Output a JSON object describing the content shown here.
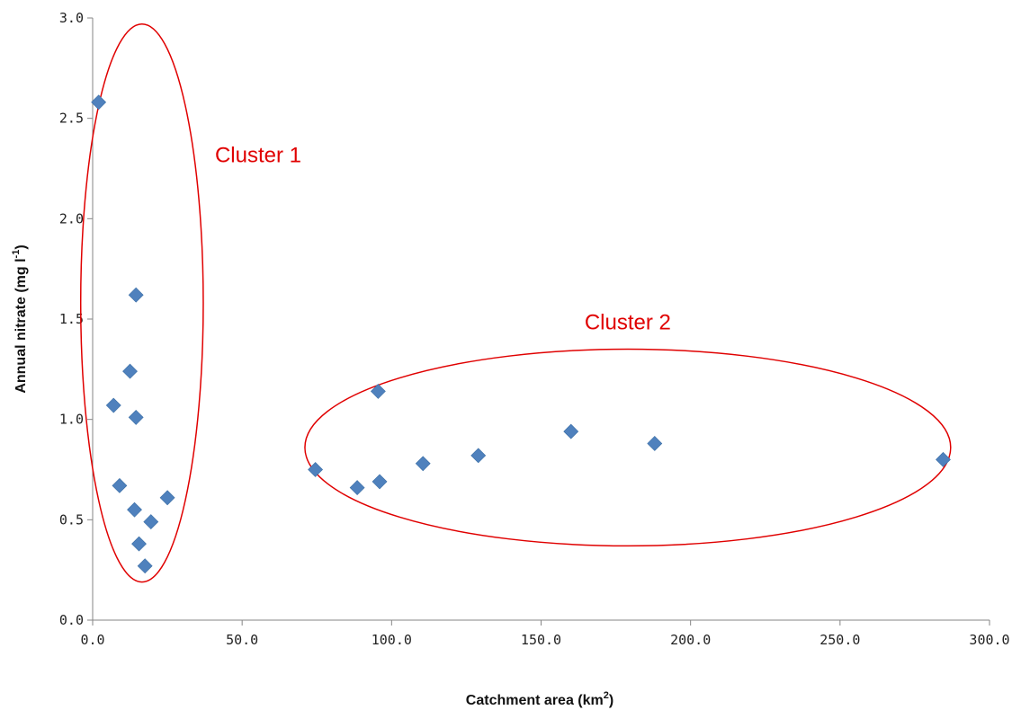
{
  "chart_data": {
    "type": "scatter",
    "xlabel": "Catchment area (km",
    "xlabel_sup": "2",
    "xlabel_end": ")",
    "ylabel": "Annual nitrate (mg l",
    "ylabel_sup": "-1",
    "ylabel_end": ")",
    "xlim": [
      0,
      300
    ],
    "ylim": [
      0,
      3
    ],
    "xticks": [
      "0.0",
      "50.0",
      "100.0",
      "150.0",
      "200.0",
      "250.0",
      "300.0"
    ],
    "yticks": [
      "0.0",
      "0.5",
      "1.0",
      "1.5",
      "2.0",
      "2.5",
      "3.0"
    ],
    "grid": false,
    "legend": "none",
    "marker": "diamond",
    "marker_color": "#4F81BD",
    "annotation_color": "#E00000",
    "points": [
      {
        "x": 2.0,
        "y": 2.58
      },
      {
        "x": 14.5,
        "y": 1.62
      },
      {
        "x": 12.5,
        "y": 1.24
      },
      {
        "x": 7.0,
        "y": 1.07
      },
      {
        "x": 14.5,
        "y": 1.01
      },
      {
        "x": 9.0,
        "y": 0.67
      },
      {
        "x": 14.0,
        "y": 0.55
      },
      {
        "x": 25.0,
        "y": 0.61
      },
      {
        "x": 19.5,
        "y": 0.49
      },
      {
        "x": 15.5,
        "y": 0.38
      },
      {
        "x": 17.5,
        "y": 0.27
      },
      {
        "x": 74.5,
        "y": 0.75
      },
      {
        "x": 88.5,
        "y": 0.66
      },
      {
        "x": 96.0,
        "y": 0.69
      },
      {
        "x": 95.5,
        "y": 1.14
      },
      {
        "x": 110.5,
        "y": 0.78
      },
      {
        "x": 129.0,
        "y": 0.82
      },
      {
        "x": 160.0,
        "y": 0.94
      },
      {
        "x": 188.0,
        "y": 0.88
      },
      {
        "x": 284.5,
        "y": 0.8
      }
    ],
    "annotations": [
      {
        "label": "Cluster 1",
        "x_range": [
          -4,
          37
        ],
        "y_range": [
          0.19,
          2.97
        ]
      },
      {
        "label": "Cluster 2",
        "x_range": [
          71,
          287
        ],
        "y_range": [
          0.37,
          1.35
        ]
      }
    ]
  }
}
